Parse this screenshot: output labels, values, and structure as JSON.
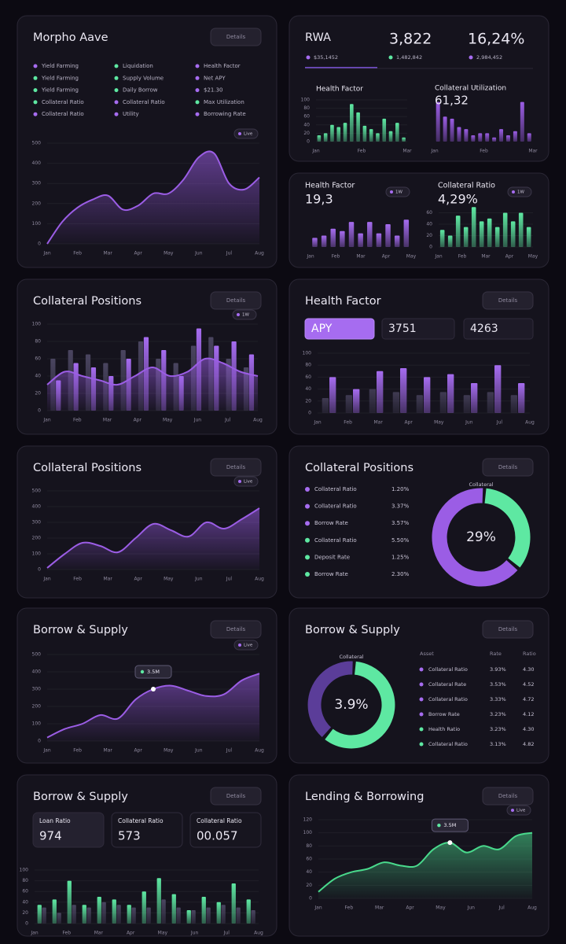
{
  "panels": [
    {
      "title": "Morpho Aave",
      "button": "Details",
      "legend": [
        {
          "label": "Yield Farming",
          "color": "#a66cf0"
        },
        {
          "label": "Yield Farming",
          "color": "#5ee8a2"
        },
        {
          "label": "Yield Farming",
          "color": "#5ee8a2"
        },
        {
          "label": "Collateral Ratio",
          "color": "#5ee8a2"
        },
        {
          "label": "Collateral Ratio",
          "color": "#a66cf0"
        },
        {
          "label": "Liquidation",
          "color": "#5ee8a2"
        },
        {
          "label": "Supply Volume",
          "color": "#5ee8a2"
        },
        {
          "label": "Daily Borrow",
          "color": "#5ee8a2"
        },
        {
          "label": "Collateral Ratio",
          "color": "#a66cf0"
        },
        {
          "label": "Utility",
          "color": "#a66cf0"
        },
        {
          "label": "Health Factor",
          "color": "#a66cf0"
        },
        {
          "label": "Net APY",
          "color": "#a66cf0"
        },
        {
          "label": "$21.30",
          "color": "#a66cf0"
        },
        {
          "label": "Max Utilization",
          "color": "#5ee8a2"
        },
        {
          "label": "Borrowing Rate",
          "color": "#a66cf0"
        }
      ],
      "charts": [
        {
          "type": "area",
          "color": "#9b5de5",
          "badge": "Live",
          "ylim": [
            0,
            500
          ],
          "yticks": [
            0,
            100,
            200,
            300,
            400,
            500
          ],
          "values": [
            0,
            110,
            180,
            220,
            240,
            170,
            190,
            250,
            250,
            320,
            430,
            450,
            300,
            270,
            330
          ],
          "xlabels": [
            "Jan",
            "Feb",
            "Mar",
            "Apr",
            "May",
            "Jun",
            "Jul",
            "Aug"
          ]
        }
      ]
    },
    {
      "title": "RWA",
      "stats": [
        "3,822",
        "16,24%"
      ],
      "legend": [
        {
          "label": "$35,1452",
          "color": "#a66cf0"
        },
        {
          "label": "1,482,842",
          "color": "#5ee8a2"
        },
        {
          "label": "2,984,452",
          "color": "#a66cf0"
        }
      ],
      "charts": [
        {
          "type": "bar",
          "label": "Health Factor",
          "color": "#5ee8a2",
          "ylim": [
            0,
            100
          ],
          "yticks": [
            0,
            20,
            40,
            60,
            80,
            100
          ],
          "values": [
            15,
            20,
            40,
            35,
            45,
            90,
            70,
            38,
            30,
            20,
            55,
            25,
            45,
            10
          ],
          "xlabels": [
            "Jan",
            "Feb",
            "Mar"
          ]
        },
        {
          "type": "bar",
          "label": "Collateral Utilization",
          "value": "61,32",
          "color": "#9b5de5",
          "ylim": [
            0,
            100
          ],
          "values": [
            95,
            60,
            55,
            35,
            30,
            15,
            20,
            20,
            10,
            30,
            15,
            25,
            95,
            20
          ],
          "xlabels": [
            "Jan",
            "Feb",
            "Mar"
          ]
        }
      ]
    },
    {
      "charts": [
        {
          "type": "bar",
          "label": "Health Factor",
          "value": "19,3",
          "badge": "1W",
          "color": "#a66cf0",
          "ylim": [
            0,
            100
          ],
          "values": [
            20,
            25,
            40,
            35,
            55,
            30,
            55,
            30,
            50,
            25,
            60
          ],
          "xlabels": [
            "Jan",
            "Feb",
            "Mar",
            "Apr",
            "May"
          ]
        },
        {
          "type": "bar",
          "label": "Collateral Ratio",
          "value": "4,29%",
          "badge": "1W",
          "color": "#5ee8a2",
          "ylim": [
            0,
            80
          ],
          "yticks": [
            0,
            20,
            40,
            60
          ],
          "values": [
            30,
            20,
            55,
            35,
            70,
            45,
            50,
            35,
            60,
            45,
            60,
            35
          ],
          "xlabels": [
            "Jan",
            "Feb",
            "Mar",
            "Apr",
            "May"
          ]
        }
      ]
    },
    {
      "title": "Collateral Positions",
      "button": "Details",
      "charts": [
        {
          "type": "combo",
          "badge": "1W",
          "ylim": [
            0,
            100
          ],
          "yticks": [
            0,
            20,
            40,
            60,
            80,
            100
          ],
          "series": [
            {
              "color": "#4a4560",
              "values": [
                60,
                70,
                65,
                55,
                70,
                80,
                60,
                55,
                75,
                85,
                60,
                50
              ]
            },
            {
              "color": "#a66cf0",
              "values": [
                35,
                55,
                50,
                40,
                60,
                85,
                70,
                40,
                95,
                75,
                80,
                65
              ]
            }
          ],
          "area": {
            "color": "#9b5de5",
            "values": [
              30,
              45,
              40,
              35,
              30,
              40,
              50,
              40,
              45,
              60,
              55,
              45,
              40
            ]
          },
          "xlabels": [
            "Jan",
            "Feb",
            "Mar",
            "Apr",
            "May",
            "Jun",
            "Jul",
            "Aug"
          ]
        }
      ]
    },
    {
      "title": "Health Factor",
      "button": "Details",
      "tabs": [
        "APY",
        "3751",
        "4263"
      ],
      "charts": [
        {
          "type": "bar",
          "ylim": [
            0,
            100
          ],
          "yticks": [
            0,
            20,
            40,
            60,
            80,
            100
          ],
          "series": [
            {
              "color": "#3f3a52",
              "values": [
                25,
                30,
                40,
                35,
                30,
                35,
                30,
                35,
                30
              ]
            },
            {
              "color": "#a66cf0",
              "values": [
                60,
                40,
                70,
                75,
                60,
                65,
                50,
                80,
                50
              ]
            }
          ],
          "xlabels": [
            "Jan",
            "Feb",
            "Mar",
            "Apr",
            "May",
            "Jun",
            "Jul",
            "Aug"
          ]
        }
      ]
    },
    {
      "title": "Collateral Positions",
      "button": "Details",
      "charts": [
        {
          "type": "area",
          "color": "#9b5de5",
          "badge": "Live",
          "ylim": [
            0,
            500
          ],
          "yticks": [
            0,
            100,
            200,
            300,
            400,
            500
          ],
          "values": [
            10,
            100,
            170,
            150,
            110,
            200,
            290,
            250,
            210,
            300,
            260,
            320,
            390
          ],
          "xlabels": [
            "Jan",
            "Feb",
            "Mar",
            "Apr",
            "May",
            "Jun",
            "Jul",
            "Aug"
          ]
        }
      ]
    },
    {
      "title": "Collateral Positions",
      "button": "Details",
      "rows": [
        {
          "label": "Collateral Ratio",
          "value": "1.20%",
          "color": "#a66cf0"
        },
        {
          "label": "Collateral Ratio",
          "value": "3.37%",
          "color": "#a66cf0"
        },
        {
          "label": "Borrow Rate",
          "value": "3.57%",
          "color": "#a66cf0"
        },
        {
          "label": "Collateral Ratio",
          "value": "5.50%",
          "color": "#5ee8a2"
        },
        {
          "label": "Deposit Rate",
          "value": "1.25%",
          "color": "#5ee8a2"
        },
        {
          "label": "Borrow Rate",
          "value": "2.30%",
          "color": "#5ee8a2"
        }
      ],
      "charts": [
        {
          "type": "donut",
          "label": "Collateral",
          "center": "29%",
          "segments": [
            {
              "color": "#5ee8a2",
              "value": 35
            },
            {
              "color": "#9b5de5",
              "value": 65
            }
          ]
        }
      ]
    },
    {
      "title": "Borrow & Supply",
      "button": "Details",
      "charts": [
        {
          "type": "area",
          "color": "#9b5de5",
          "badge": "Live",
          "tooltip": "3.5M",
          "ylim": [
            0,
            500
          ],
          "yticks": [
            0,
            100,
            200,
            300,
            400,
            500
          ],
          "values": [
            20,
            70,
            100,
            150,
            130,
            240,
            300,
            320,
            290,
            260,
            270,
            350,
            390
          ],
          "xlabels": [
            "Jan",
            "Feb",
            "Mar",
            "Apr",
            "May",
            "Jun",
            "Jul",
            "Aug"
          ]
        }
      ]
    },
    {
      "title": "Borrow & Supply",
      "button": "Details",
      "table": {
        "header": [
          "Asset",
          "Rate",
          "Ratio"
        ],
        "rows": [
          {
            "color": "#a66cf0",
            "cells": [
              "Collateral Ratio",
              "3.93%",
              "4.30"
            ]
          },
          {
            "color": "#a66cf0",
            "cells": [
              "Collateral Rate",
              "3.53%",
              "4.52"
            ]
          },
          {
            "color": "#a66cf0",
            "cells": [
              "Collateral Ratio",
              "3.33%",
              "4.72"
            ]
          },
          {
            "color": "#a66cf0",
            "cells": [
              "Borrow Rate",
              "3.23%",
              "4.12"
            ]
          },
          {
            "color": "#5ee8a2",
            "cells": [
              "Health Ratio",
              "3.23%",
              "4.30"
            ]
          },
          {
            "color": "#5ee8a2",
            "cells": [
              "Collateral Ratio",
              "3.13%",
              "4.82"
            ]
          }
        ]
      },
      "charts": [
        {
          "type": "donut",
          "label": "Collateral",
          "center": "3.9%",
          "segments": [
            {
              "color": "#5ee8a2",
              "value": 60
            },
            {
              "color": "#5b3d99",
              "value": 40
            }
          ]
        }
      ]
    },
    {
      "title": "Borrow & Supply",
      "button": "Details",
      "stats": [
        {
          "label": "Loan Ratio",
          "value": "974"
        },
        {
          "label": "Collateral Ratio",
          "value": "573"
        },
        {
          "label": "Collateral Ratio",
          "value": "00.057"
        }
      ],
      "charts": [
        {
          "type": "bar",
          "ylim": [
            0,
            100
          ],
          "yticks": [
            0,
            20,
            40,
            60,
            80,
            100
          ],
          "series": [
            {
              "color": "#5ee8a2",
              "values": [
                35,
                45,
                80,
                35,
                50,
                45,
                35,
                60,
                85,
                55,
                25,
                50,
                40,
                75,
                45
              ]
            },
            {
              "color": "#4a4560",
              "values": [
                30,
                20,
                35,
                30,
                40,
                35,
                30,
                30,
                45,
                30,
                25,
                30,
                35,
                30,
                25
              ]
            }
          ],
          "xlabels": [
            "Jan",
            "Feb",
            "Mar",
            "Apr",
            "May",
            "Jun",
            "Jul",
            "Aug"
          ]
        }
      ]
    },
    {
      "title": "Lending & Borrowing",
      "button": "Details",
      "charts": [
        {
          "type": "area",
          "color": "#49d98c",
          "badge": "Live",
          "tooltip": "3.5M",
          "ylim": [
            0,
            120
          ],
          "yticks": [
            0,
            20,
            40,
            60,
            80,
            100,
            120
          ],
          "values": [
            10,
            30,
            40,
            45,
            55,
            50,
            50,
            75,
            85,
            70,
            80,
            75,
            95,
            100
          ],
          "xlabels": [
            "Jan",
            "Feb",
            "Mar",
            "Apr",
            "May",
            "Jun",
            "Jul",
            "Aug"
          ]
        }
      ]
    }
  ]
}
